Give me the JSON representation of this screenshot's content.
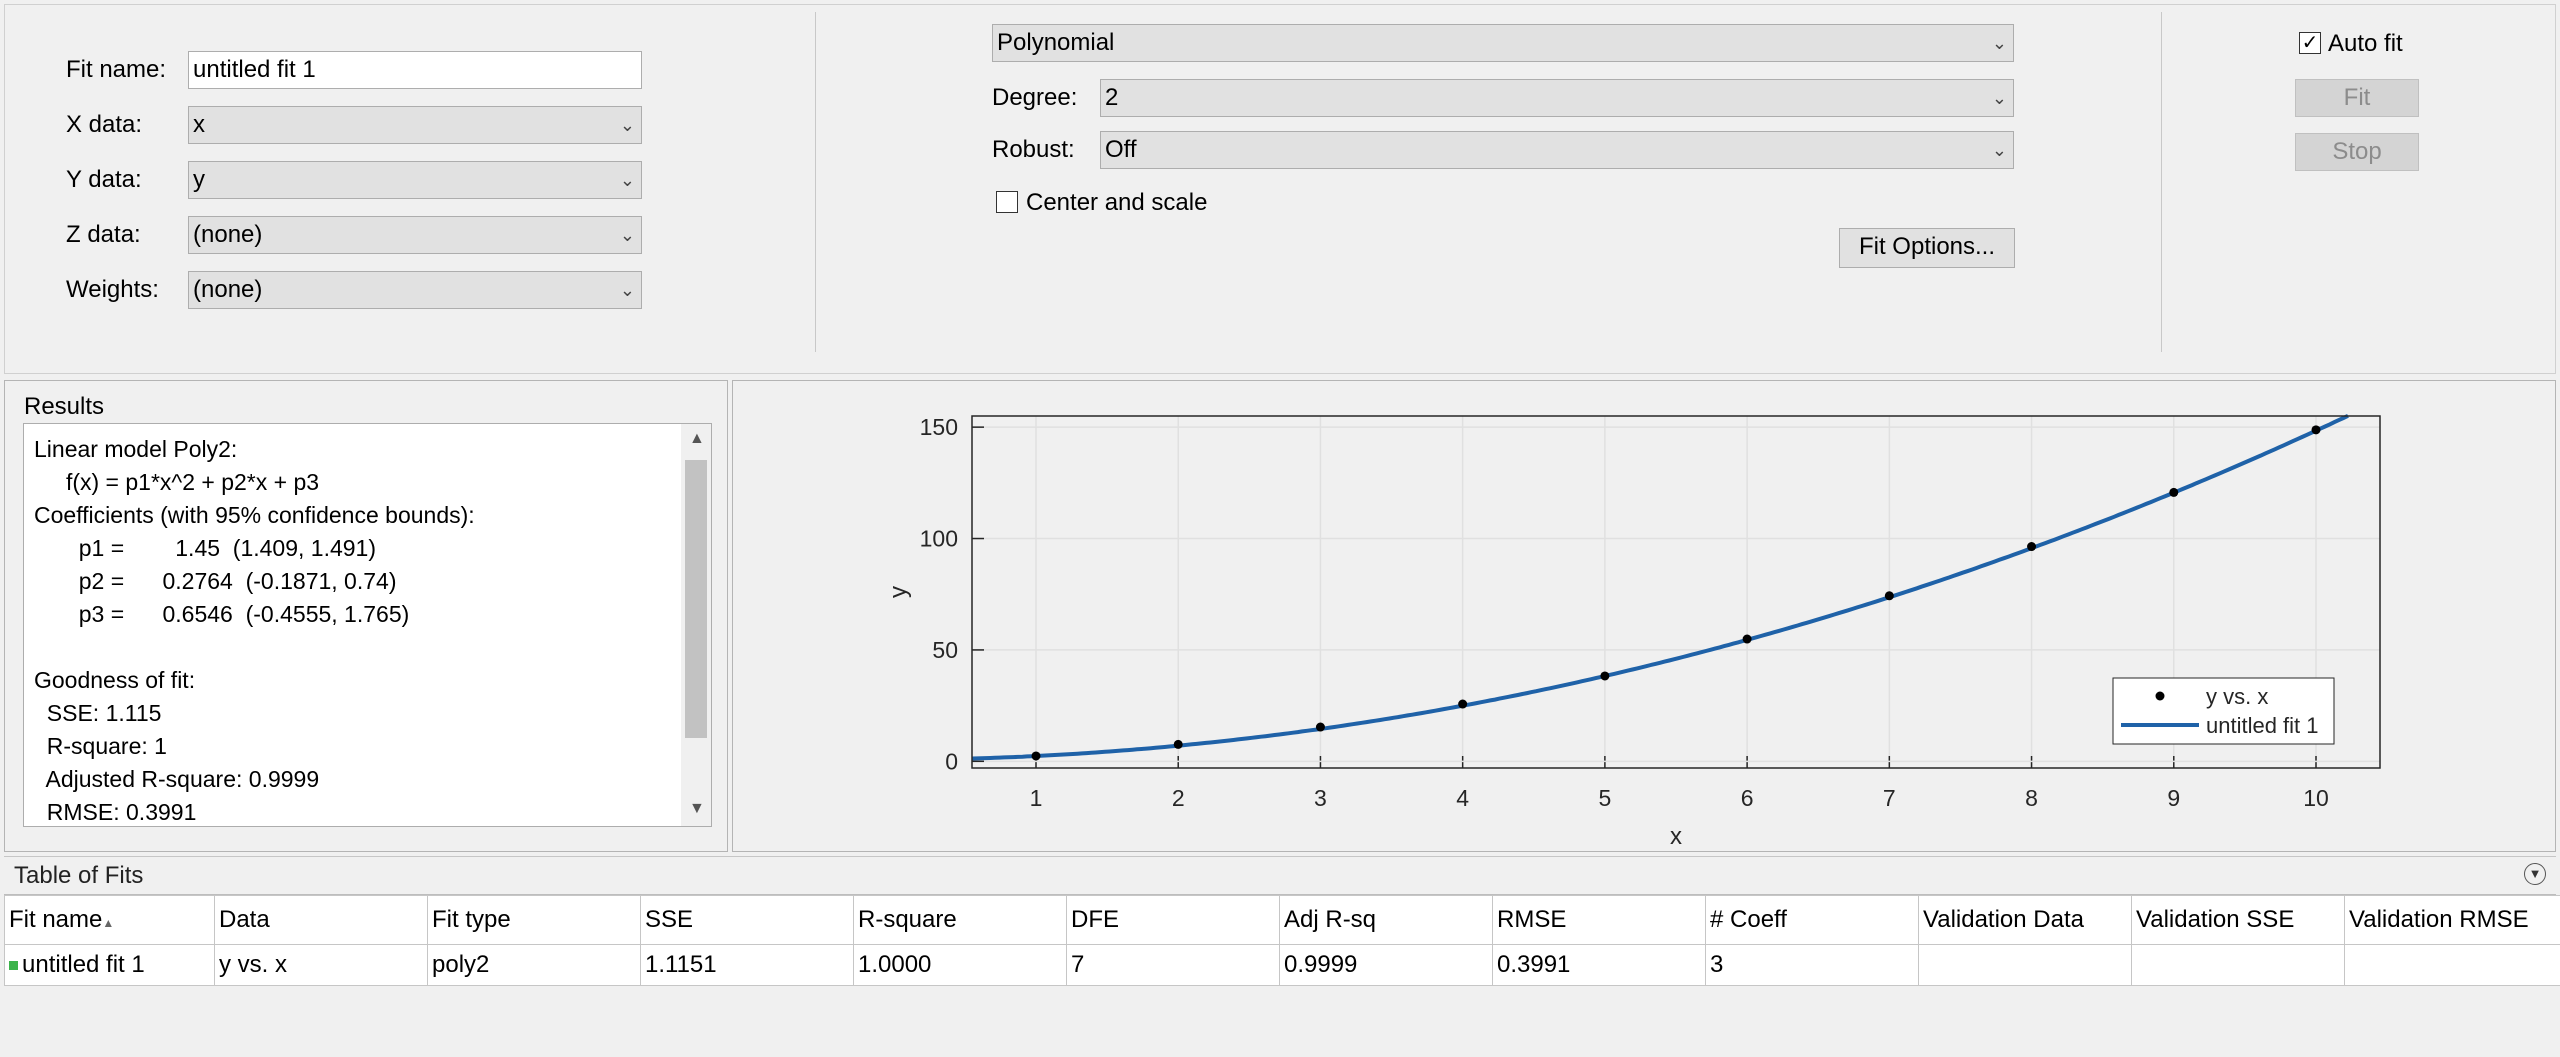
{
  "fit_settings": {
    "fit_name_label": "Fit name:",
    "fit_name_value": "untitled fit 1",
    "x_label": "X data:",
    "x_value": "x",
    "y_label": "Y data:",
    "y_value": "y",
    "z_label": "Z data:",
    "z_value": "(none)",
    "weights_label": "Weights:",
    "weights_value": "(none)"
  },
  "fit_type": {
    "model": "Polynomial",
    "degree_label": "Degree:",
    "degree_value": "2",
    "robust_label": "Robust:",
    "robust_value": "Off",
    "center_scale_label": "Center and scale",
    "center_scale_checked": false,
    "fit_options_label": "Fit Options..."
  },
  "actions": {
    "auto_fit_label": "Auto fit",
    "auto_fit_checked": true,
    "fit_label": "Fit",
    "stop_label": "Stop"
  },
  "results": {
    "title": "Results",
    "lines": [
      "Linear model Poly2:",
      "     f(x) = p1*x^2 + p2*x + p3",
      "Coefficients (with 95% confidence bounds):",
      "       p1 =        1.45  (1.409, 1.491)",
      "       p2 =      0.2764  (-0.1871, 0.74)",
      "       p3 =      0.6546  (-0.4555, 1.765)",
      "",
      "Goodness of fit:",
      "  SSE: 1.115",
      "  R-square: 1",
      "  Adjusted R-square: 0.9999",
      "  RMSE: 0.3991"
    ]
  },
  "chart_data": {
    "type": "scatter",
    "xlabel": "x",
    "ylabel": "y",
    "xlim": [
      0.55,
      10.45
    ],
    "ylim": [
      -3,
      155
    ],
    "xticks": [
      "1",
      "2",
      "3",
      "4",
      "5",
      "6",
      "7",
      "8",
      "9",
      "10"
    ],
    "yticks": [
      "0",
      "50",
      "100",
      "150"
    ],
    "grid": true,
    "legend_position": "bottom-right",
    "series": [
      {
        "name": "y vs. x",
        "kind": "points",
        "x": [
          1,
          2,
          3,
          4,
          5,
          6,
          7,
          8,
          9,
          10
        ],
        "y": [
          2.4,
          7.6,
          15.4,
          25.7,
          38.3,
          54.9,
          74.3,
          96.4,
          120.7,
          148.8
        ]
      },
      {
        "name": "untitled fit 1",
        "kind": "curve",
        "p1": 1.45,
        "p2": 0.2764,
        "p3": 0.6546
      }
    ],
    "colors": {
      "points": "#000000",
      "curve": "#1f62a8"
    }
  },
  "table_of_fits": {
    "title": "Table of Fits",
    "columns": [
      "Fit name",
      "Data",
      "Fit type",
      "SSE",
      "R-square",
      "DFE",
      "Adj R-sq",
      "RMSE",
      "# Coeff",
      "Validation Data",
      "Validation SSE",
      "Validation RMSE"
    ],
    "rows": [
      [
        "untitled fit 1",
        "y vs. x",
        "poly2",
        "1.1151",
        "1.0000",
        "7",
        "0.9999",
        "0.3991",
        "3",
        "",
        "",
        ""
      ]
    ]
  }
}
